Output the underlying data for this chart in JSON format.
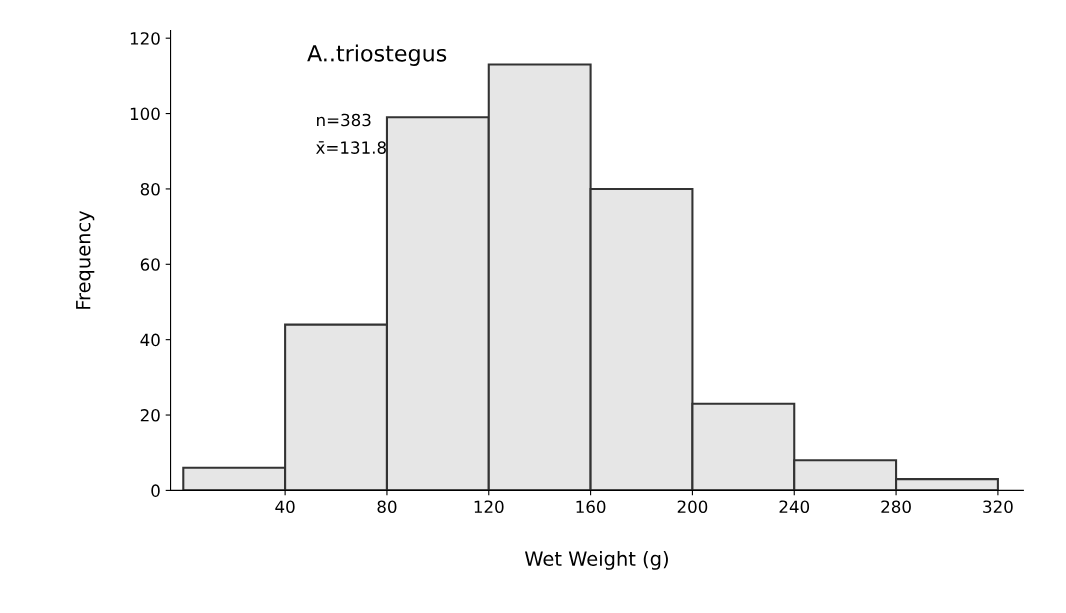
{
  "chart_data": {
    "type": "histogram",
    "xlabel": "Wet Weight (g)",
    "ylabel": "Frequency",
    "bins": [
      0,
      40,
      80,
      120,
      160,
      200,
      240,
      280,
      320
    ],
    "values": [
      6,
      44,
      99,
      113,
      80,
      23,
      8,
      3
    ],
    "color": "#e6e6e6",
    "xlim": [
      -5,
      330
    ],
    "xticks": [
      40,
      80,
      120,
      160,
      200,
      240,
      280,
      320
    ],
    "ylim": [
      0,
      122
    ],
    "yticks": [
      0,
      20,
      40,
      60,
      80,
      100,
      120
    ],
    "grid": false,
    "legend": false,
    "annotations": [
      "A..triostegus",
      "n=383",
      "x̄=131.8"
    ]
  }
}
